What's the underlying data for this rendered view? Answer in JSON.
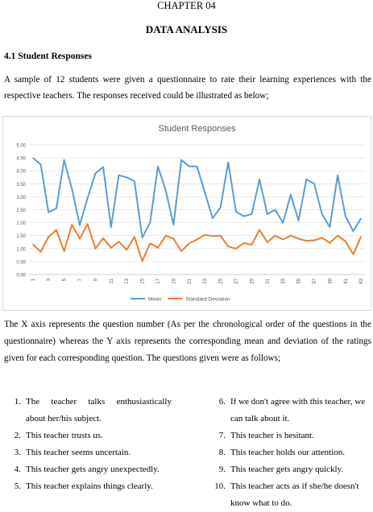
{
  "document": {
    "chapter": "CHAPTER 04",
    "title": "DATA ANALYSIS",
    "section": "4.1 Student Responses",
    "intro_line1": "A sample of 12 students were given a questionnaire to rate their learning experiences with the",
    "intro_line2": "respective teachers. The responses received could be illustrated as below;",
    "after_line1": "The X axis represents the question number (As per the chronological order of the questions in the",
    "after_line2": "questionnaire) whereas the Y axis represents the corresponding mean and deviation of the ratings",
    "after_line3": "given for each corresponding question. The questions given were as follows;"
  },
  "questions_left": [
    {
      "num": "1.",
      "line1": "The teacher talks enthusiastically",
      "line2": "about her/his subject."
    },
    {
      "num": "2.",
      "line1": "This teacher trusts us."
    },
    {
      "num": "3.",
      "line1": "This teacher seems uncertain."
    },
    {
      "num": "4.",
      "line1": "This teacher gets angry unexpectedly."
    },
    {
      "num": "5.",
      "line1": "This teacher explains things clearly."
    }
  ],
  "questions_right": [
    {
      "num": "6.",
      "line1": "If we don't agree with this teacher, we",
      "line2": "can talk about it."
    },
    {
      "num": "7.",
      "line1": "This teacher is hesitant."
    },
    {
      "num": "8.",
      "line1": "This teacher holds our attention."
    },
    {
      "num": "9.",
      "line1": "This teacher gets angry quickly."
    },
    {
      "num": "10.",
      "line1": "This teacher acts as if she/he doesn't",
      "line2": "know what to do."
    }
  ],
  "chart_data": {
    "type": "line",
    "title": "Student Responses",
    "xlabel": "",
    "ylabel": "",
    "ylim": [
      0,
      5
    ],
    "yticks": [
      "0.00",
      "0.50",
      "1.00",
      "1.50",
      "2.00",
      "2.50",
      "3.00",
      "3.50",
      "4.00",
      "4.50",
      "5.00"
    ],
    "x": [
      1,
      2,
      3,
      4,
      5,
      6,
      7,
      8,
      9,
      10,
      11,
      12,
      13,
      14,
      15,
      16,
      17,
      18,
      19,
      20,
      21,
      22,
      23,
      24,
      25,
      26,
      27,
      28,
      29,
      30,
      31,
      32,
      33,
      34,
      35,
      36,
      37,
      38,
      39,
      40,
      41,
      42,
      43
    ],
    "xtick_labels": [
      "1",
      "3",
      "5",
      "7",
      "9",
      "11",
      "13",
      "15",
      "17",
      "19",
      "21",
      "23",
      "25",
      "27",
      "29",
      "31",
      "33",
      "35",
      "37",
      "39",
      "41",
      "43"
    ],
    "grid": true,
    "legend": "bottom",
    "series": [
      {
        "name": "Mean",
        "color": "#5b9bd5",
        "values": [
          4.5,
          4.25,
          2.4,
          2.55,
          4.42,
          3.3,
          1.9,
          2.95,
          3.9,
          4.15,
          1.83,
          3.83,
          3.75,
          3.6,
          1.42,
          2.0,
          4.17,
          3.25,
          1.92,
          4.42,
          4.17,
          4.17,
          3.17,
          2.17,
          2.58,
          4.33,
          2.42,
          2.25,
          2.33,
          3.67,
          2.33,
          2.5,
          2.0,
          3.08,
          2.08,
          3.67,
          3.5,
          2.33,
          1.83,
          3.83,
          2.25,
          1.67,
          2.17
        ]
      },
      {
        "name": "Standard Deviation",
        "color": "#ed7d31",
        "values": [
          1.17,
          0.87,
          1.45,
          1.72,
          0.9,
          1.92,
          1.38,
          1.95,
          1.0,
          1.4,
          1.03,
          1.27,
          0.95,
          1.45,
          0.52,
          1.2,
          1.03,
          1.5,
          1.38,
          0.9,
          1.2,
          1.35,
          1.53,
          1.48,
          1.5,
          1.08,
          1.0,
          1.21,
          1.15,
          1.72,
          1.25,
          1.5,
          1.35,
          1.5,
          1.38,
          1.3,
          1.32,
          1.42,
          1.22,
          1.5,
          1.28,
          0.78,
          1.47
        ]
      }
    ]
  }
}
